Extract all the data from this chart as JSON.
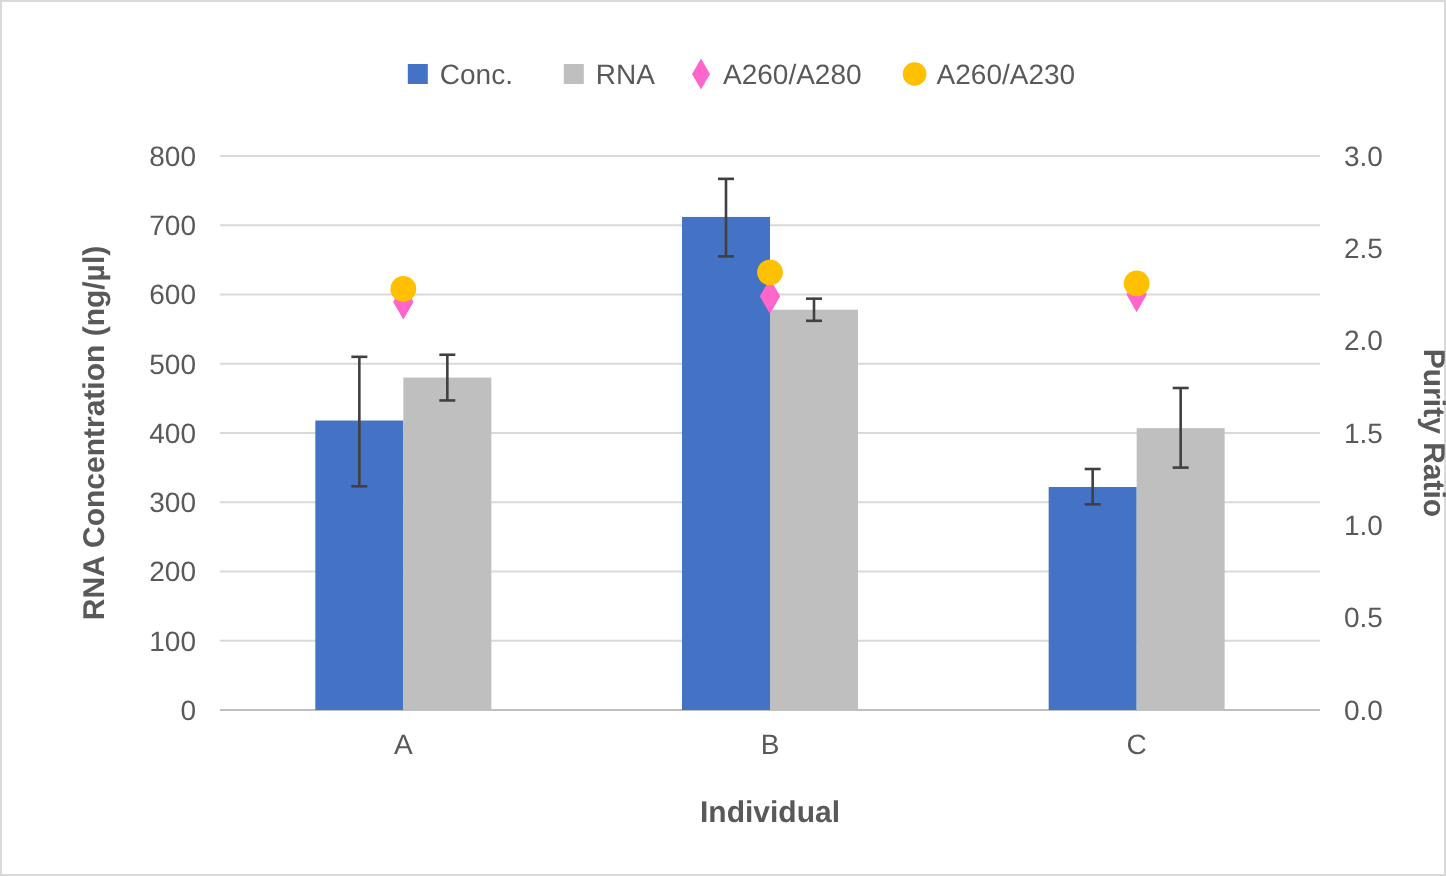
{
  "chart_data": {
    "type": "bar",
    "xlabel": "Individual",
    "ylabel": "RNA Concentration (ng/µl)",
    "y2label": "Purity Ratio",
    "categories": [
      "A",
      "B",
      "C"
    ],
    "series": [
      {
        "name": "Conc.",
        "color": "#4472c4",
        "values": [
          418,
          712,
          322
        ],
        "errors": [
          [
            323,
            510
          ],
          [
            655,
            767
          ],
          [
            297,
            348
          ]
        ]
      },
      {
        "name": "RNA",
        "color": "#bfbfbf",
        "values": [
          480,
          578,
          407
        ],
        "errors": [
          [
            447,
            513
          ],
          [
            562,
            594
          ],
          [
            350,
            465
          ]
        ]
      },
      {
        "name": "A260/A280",
        "type": "scatter",
        "axis": "y2",
        "marker": "diamond",
        "color": "#ff66cc",
        "values": [
          2.21,
          2.24,
          2.25
        ]
      },
      {
        "name": "A260/A230",
        "type": "scatter",
        "axis": "y2",
        "marker": "circle",
        "color": "#ffc000",
        "values": [
          2.28,
          2.37,
          2.31
        ]
      }
    ],
    "ylim": [
      0,
      800
    ],
    "yticks": [
      0,
      100,
      200,
      300,
      400,
      500,
      600,
      700,
      800
    ],
    "y2lim": [
      0,
      3
    ],
    "y2ticks": [
      {
        "value": 0,
        "label": "0.0"
      },
      {
        "value": 0.5,
        "label": "0.5"
      },
      {
        "value": 1,
        "label": "1.0"
      },
      {
        "value": 1.5,
        "label": "1.5"
      },
      {
        "value": 2,
        "label": "2.0"
      },
      {
        "value": 2.5,
        "label": "2.5"
      },
      {
        "value": 3,
        "label": "3.0"
      }
    ],
    "grid": "y",
    "legend": "top"
  }
}
